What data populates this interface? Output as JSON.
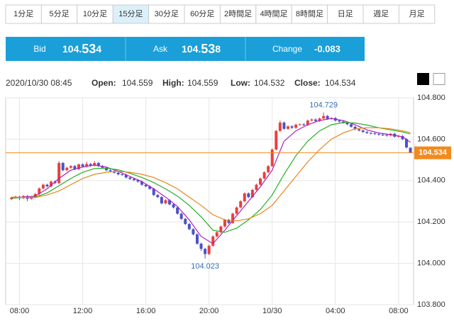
{
  "tabs": [
    "1分足",
    "5分足",
    "10分足",
    "15分足",
    "30分足",
    "60分足",
    "2時間足",
    "4時間足",
    "8時間足",
    "日足",
    "週足",
    "月足"
  ],
  "selected_tab": 3,
  "quote": {
    "bid_label": "Bid",
    "bid": [
      "104.",
      "53",
      "4"
    ],
    "ask_label": "Ask",
    "ask": [
      "104.",
      "53",
      "8"
    ],
    "change_label": "Change",
    "change": "-0.083"
  },
  "info": {
    "time": "2020/10/30 08:45",
    "open_label": "Open:",
    "high_label": "High:",
    "low_label": "Low:",
    "close_label": "Close:"
  },
  "chart_data": {
    "type": "candlestick",
    "open": [
      104.31,
      104.318,
      104.322,
      104.315,
      104.325,
      104.312,
      104.32,
      104.335,
      104.362,
      104.38,
      104.372,
      104.395,
      104.388,
      104.485,
      104.45,
      104.462,
      104.47,
      104.455,
      104.478,
      104.468,
      104.48,
      104.472,
      104.485,
      104.47,
      104.462,
      104.45,
      104.445,
      104.438,
      104.43,
      104.428,
      104.415,
      104.408,
      104.402,
      104.395,
      104.38,
      104.372,
      104.36,
      104.33,
      104.32,
      104.29,
      104.305,
      104.285,
      104.27,
      104.24,
      104.215,
      104.19,
      104.165,
      104.14,
      104.095,
      104.07,
      104.045,
      104.085,
      104.13,
      104.15,
      104.178,
      104.21,
      104.195,
      104.24,
      104.27,
      104.3,
      104.338,
      104.32,
      104.355,
      104.38,
      104.41,
      104.44,
      104.47,
      104.55,
      104.64,
      104.68,
      104.65,
      104.662,
      104.655,
      104.67,
      104.672,
      104.668,
      104.69,
      104.695,
      104.688,
      104.7,
      104.712,
      104.698,
      104.702,
      104.69,
      104.685,
      104.68,
      104.672,
      104.66,
      104.648,
      104.642,
      104.635,
      104.63,
      104.628,
      104.625,
      104.622,
      104.62,
      104.618,
      104.626,
      104.612,
      104.615,
      104.6,
      104.559
    ],
    "high": [
      104.323,
      104.327,
      104.327,
      104.33,
      104.33,
      104.325,
      104.34,
      104.367,
      104.385,
      104.385,
      104.4,
      104.4,
      104.495,
      104.49,
      104.467,
      104.475,
      104.475,
      104.483,
      104.483,
      104.492,
      104.485,
      104.495,
      104.49,
      104.475,
      104.467,
      104.455,
      104.45,
      104.443,
      104.435,
      104.433,
      104.42,
      104.413,
      104.407,
      104.4,
      104.385,
      104.377,
      104.365,
      104.335,
      104.325,
      104.31,
      104.31,
      104.29,
      104.275,
      104.245,
      104.22,
      104.195,
      104.17,
      104.145,
      104.1,
      104.075,
      104.09,
      104.135,
      104.155,
      104.183,
      104.215,
      104.215,
      104.245,
      104.275,
      104.305,
      104.343,
      104.343,
      104.36,
      104.385,
      104.415,
      104.445,
      104.475,
      104.555,
      104.645,
      104.69,
      104.685,
      104.667,
      104.667,
      104.675,
      104.677,
      104.677,
      104.695,
      104.7,
      104.7,
      104.705,
      104.729,
      104.717,
      104.707,
      104.707,
      104.695,
      104.69,
      104.685,
      104.677,
      104.665,
      104.653,
      104.647,
      104.64,
      104.635,
      104.633,
      104.63,
      104.627,
      104.625,
      104.631,
      104.631,
      104.62,
      104.62,
      104.605,
      104.559
    ],
    "low": [
      104.305,
      104.313,
      104.305,
      104.31,
      104.3,
      104.307,
      104.315,
      104.33,
      104.357,
      104.367,
      104.367,
      104.383,
      104.383,
      104.445,
      104.445,
      104.457,
      104.45,
      104.45,
      104.463,
      104.463,
      104.467,
      104.467,
      104.465,
      104.457,
      104.445,
      104.44,
      104.433,
      104.425,
      104.423,
      104.41,
      104.403,
      104.397,
      104.39,
      104.375,
      104.367,
      104.355,
      104.325,
      104.315,
      104.285,
      104.285,
      104.28,
      104.265,
      104.235,
      104.21,
      104.185,
      104.16,
      104.135,
      104.09,
      104.06,
      104.023,
      104.04,
      104.08,
      104.125,
      104.145,
      104.173,
      104.19,
      104.19,
      104.235,
      104.265,
      104.295,
      104.315,
      104.315,
      104.35,
      104.375,
      104.405,
      104.435,
      104.465,
      104.545,
      104.635,
      104.645,
      104.645,
      104.65,
      104.65,
      104.665,
      104.663,
      104.663,
      104.685,
      104.683,
      104.683,
      104.695,
      104.693,
      104.693,
      104.685,
      104.68,
      104.675,
      104.667,
      104.655,
      104.643,
      104.637,
      104.63,
      104.625,
      104.623,
      104.62,
      104.617,
      104.615,
      104.613,
      104.613,
      104.607,
      104.607,
      104.595,
      104.555,
      104.532
    ],
    "close": [
      104.318,
      104.322,
      104.315,
      104.325,
      104.312,
      104.32,
      104.335,
      104.362,
      104.38,
      104.372,
      104.395,
      104.388,
      104.485,
      104.45,
      104.462,
      104.47,
      104.455,
      104.478,
      104.468,
      104.48,
      104.472,
      104.485,
      104.47,
      104.462,
      104.45,
      104.445,
      104.438,
      104.43,
      104.428,
      104.415,
      104.408,
      104.402,
      104.395,
      104.38,
      104.372,
      104.36,
      104.33,
      104.32,
      104.29,
      104.305,
      104.285,
      104.27,
      104.24,
      104.215,
      104.19,
      104.165,
      104.14,
      104.095,
      104.07,
      104.045,
      104.085,
      104.13,
      104.15,
      104.178,
      104.21,
      104.195,
      104.24,
      104.27,
      104.3,
      104.338,
      104.32,
      104.355,
      104.38,
      104.41,
      104.44,
      104.47,
      104.55,
      104.64,
      104.68,
      104.65,
      104.662,
      104.655,
      104.67,
      104.672,
      104.668,
      104.69,
      104.695,
      104.688,
      104.7,
      104.712,
      104.698,
      104.702,
      104.69,
      104.685,
      104.68,
      104.672,
      104.66,
      104.648,
      104.642,
      104.635,
      104.63,
      104.628,
      104.625,
      104.622,
      104.62,
      104.618,
      104.626,
      104.612,
      104.615,
      104.6,
      104.56,
      104.534
    ],
    "up_color": "#e8413c",
    "down_color": "#4a52c8",
    "ma_x": [
      0,
      3,
      6,
      9,
      12,
      15,
      18,
      21,
      24,
      27,
      30,
      33,
      36,
      39,
      42,
      45,
      48,
      51,
      54,
      57,
      60,
      63,
      66,
      69,
      72,
      75,
      78,
      81,
      84,
      87,
      90,
      93,
      96,
      99,
      101
    ],
    "moving_averages": [
      {
        "color": "#b01fbf",
        "values": [
          104.318,
          104.32,
          104.325,
          104.36,
          104.41,
          104.45,
          104.465,
          104.475,
          104.465,
          104.445,
          104.42,
          104.395,
          104.36,
          104.32,
          104.275,
          104.21,
          104.13,
          104.095,
          104.16,
          104.23,
          104.3,
          104.37,
          104.45,
          104.59,
          104.64,
          104.67,
          104.69,
          104.7,
          104.69,
          104.67,
          104.645,
          104.63,
          104.622,
          104.612,
          104.585
        ]
      },
      {
        "color": "#22b022",
        "values": [
          104.315,
          104.318,
          104.32,
          104.34,
          104.375,
          104.41,
          104.44,
          104.458,
          104.46,
          104.452,
          104.435,
          104.415,
          104.39,
          104.36,
          104.325,
          104.28,
          104.225,
          104.16,
          104.15,
          104.17,
          104.21,
          104.26,
          104.33,
          104.43,
          104.52,
          104.59,
          104.64,
          104.67,
          104.68,
          104.678,
          104.668,
          104.655,
          104.645,
          104.635,
          104.625
        ]
      },
      {
        "color": "#e8861a",
        "values": [
          104.32,
          104.318,
          104.318,
          104.33,
          104.35,
          104.38,
          104.41,
          104.43,
          104.44,
          104.445,
          104.44,
          104.43,
          104.415,
          104.39,
          104.36,
          104.32,
          104.28,
          104.235,
          104.21,
          104.205,
          104.215,
          104.24,
          104.28,
          104.35,
          104.42,
          104.49,
          104.55,
          104.6,
          104.63,
          104.65,
          104.655,
          104.655,
          104.65,
          104.64,
          104.632
        ]
      }
    ],
    "price_line_color": "#f28a1e",
    "xlim": [
      -1.5,
      101.8
    ],
    "xticks": [
      {
        "value": 2,
        "label": "08:00"
      },
      {
        "value": 18,
        "label": "12:00"
      },
      {
        "value": 34,
        "label": "16:00"
      },
      {
        "value": 50,
        "label": "20:00"
      },
      {
        "value": 66,
        "label": "10/30"
      },
      {
        "value": 82,
        "label": "04:00"
      },
      {
        "value": 98,
        "label": "08:00"
      }
    ],
    "ylim": [
      103.8,
      104.8
    ],
    "yticks": [
      {
        "value": 103.8,
        "label": "103.800"
      },
      {
        "value": 104,
        "label": "104.000"
      },
      {
        "value": 104.2,
        "label": "104.200"
      },
      {
        "value": 104.4,
        "label": "104.400"
      },
      {
        "value": 104.6,
        "label": "104.600"
      },
      {
        "value": 104.8,
        "label": "104.800"
      }
    ],
    "grid": true
  }
}
